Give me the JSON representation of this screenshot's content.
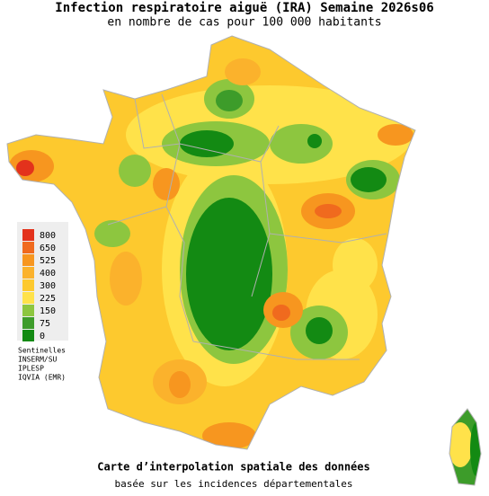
{
  "header": {
    "title": "Infection respiratoire aiguë (IRA) Semaine 2026s06",
    "subtitle": "en nombre de cas pour 100 000 habitants"
  },
  "legend": {
    "items": [
      {
        "value": 800,
        "color": "#e3321c"
      },
      {
        "value": 650,
        "color": "#f06a1e"
      },
      {
        "value": 525,
        "color": "#f7961f"
      },
      {
        "value": 400,
        "color": "#fbb22c"
      },
      {
        "value": 300,
        "color": "#fdc92e"
      },
      {
        "value": 225,
        "color": "#ffe24a"
      },
      {
        "value": 150,
        "color": "#8dc63f"
      },
      {
        "value": 75,
        "color": "#3d9c2a"
      },
      {
        "value": 0,
        "color": "#138a13"
      }
    ]
  },
  "sources": [
    "Sentinelles",
    "INSERM/SU",
    "IPLESP",
    "IQVIA (EMR)"
  ],
  "footer": {
    "title": "Carte d’interpolation spatiale des données",
    "subtitle": "basée sur les incidences départementales"
  }
}
